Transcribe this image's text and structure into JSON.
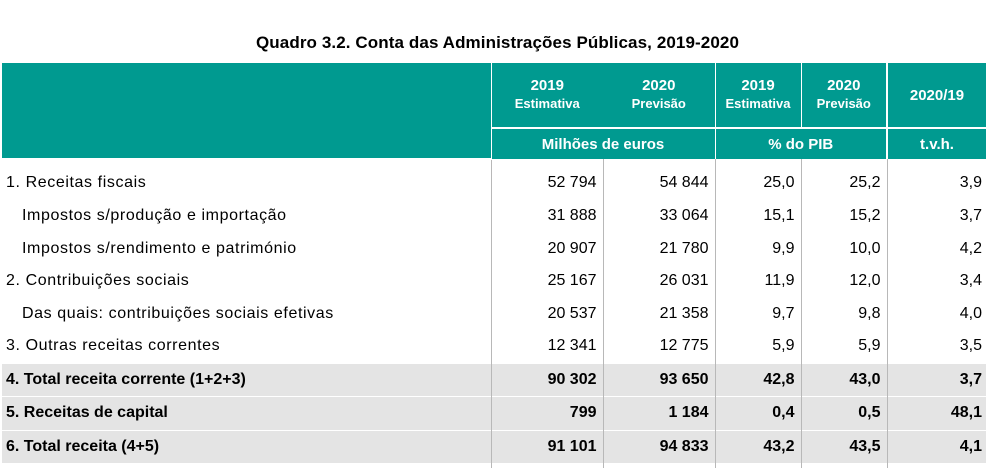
{
  "title": "Quadro 3.2. Conta das Administrações Públicas, 2019-2020",
  "header": {
    "col1_year": "2019",
    "col1_sub": "Estimativa",
    "col2_year": "2020",
    "col2_sub": "Previsão",
    "col3_year": "2019",
    "col3_sub": "Estimativa",
    "col4_year": "2020",
    "col4_sub": "Previsão",
    "col5": "2020/19",
    "unit_euros": "Milhões de euros",
    "unit_pib": "% do PIB",
    "unit_tvh": "t.v.h."
  },
  "rows": [
    {
      "label": "1. Receitas fiscais",
      "v1": "52 794",
      "v2": "54 844",
      "v3": "25,0",
      "v4": "25,2",
      "v5": "3,9"
    },
    {
      "label": "Impostos s/produção e importação",
      "v1": "31 888",
      "v2": "33 064",
      "v3": "15,1",
      "v4": "15,2",
      "v5": "3,7"
    },
    {
      "label": "Impostos s/rendimento e património",
      "v1": "20 907",
      "v2": "21 780",
      "v3": "9,9",
      "v4": "10,0",
      "v5": "4,2"
    },
    {
      "label": "2. Contribuições sociais",
      "v1": "25 167",
      "v2": "26 031",
      "v3": "11,9",
      "v4": "12,0",
      "v5": "3,4"
    },
    {
      "label": "Das quais: contribuições sociais efetivas",
      "v1": "20 537",
      "v2": "21 358",
      "v3": "9,7",
      "v4": "9,8",
      "v5": "4,0"
    },
    {
      "label": "3. Outras receitas correntes",
      "v1": "12 341",
      "v2": "12 775",
      "v3": "5,9",
      "v4": "5,9",
      "v5": "3,5"
    },
    {
      "label": "4. Total receita corrente (1+2+3)",
      "v1": "90 302",
      "v2": "93 650",
      "v3": "42,8",
      "v4": "43,0",
      "v5": "3,7"
    },
    {
      "label": "5. Receitas de capital",
      "v1": "799",
      "v2": "1 184",
      "v3": "0,4",
      "v4": "0,5",
      "v5": "48,1"
    },
    {
      "label": "6. Total receita (4+5)",
      "v1": "91 101",
      "v2": "94 833",
      "v3": "43,2",
      "v4": "43,5",
      "v5": "4,1"
    }
  ]
}
